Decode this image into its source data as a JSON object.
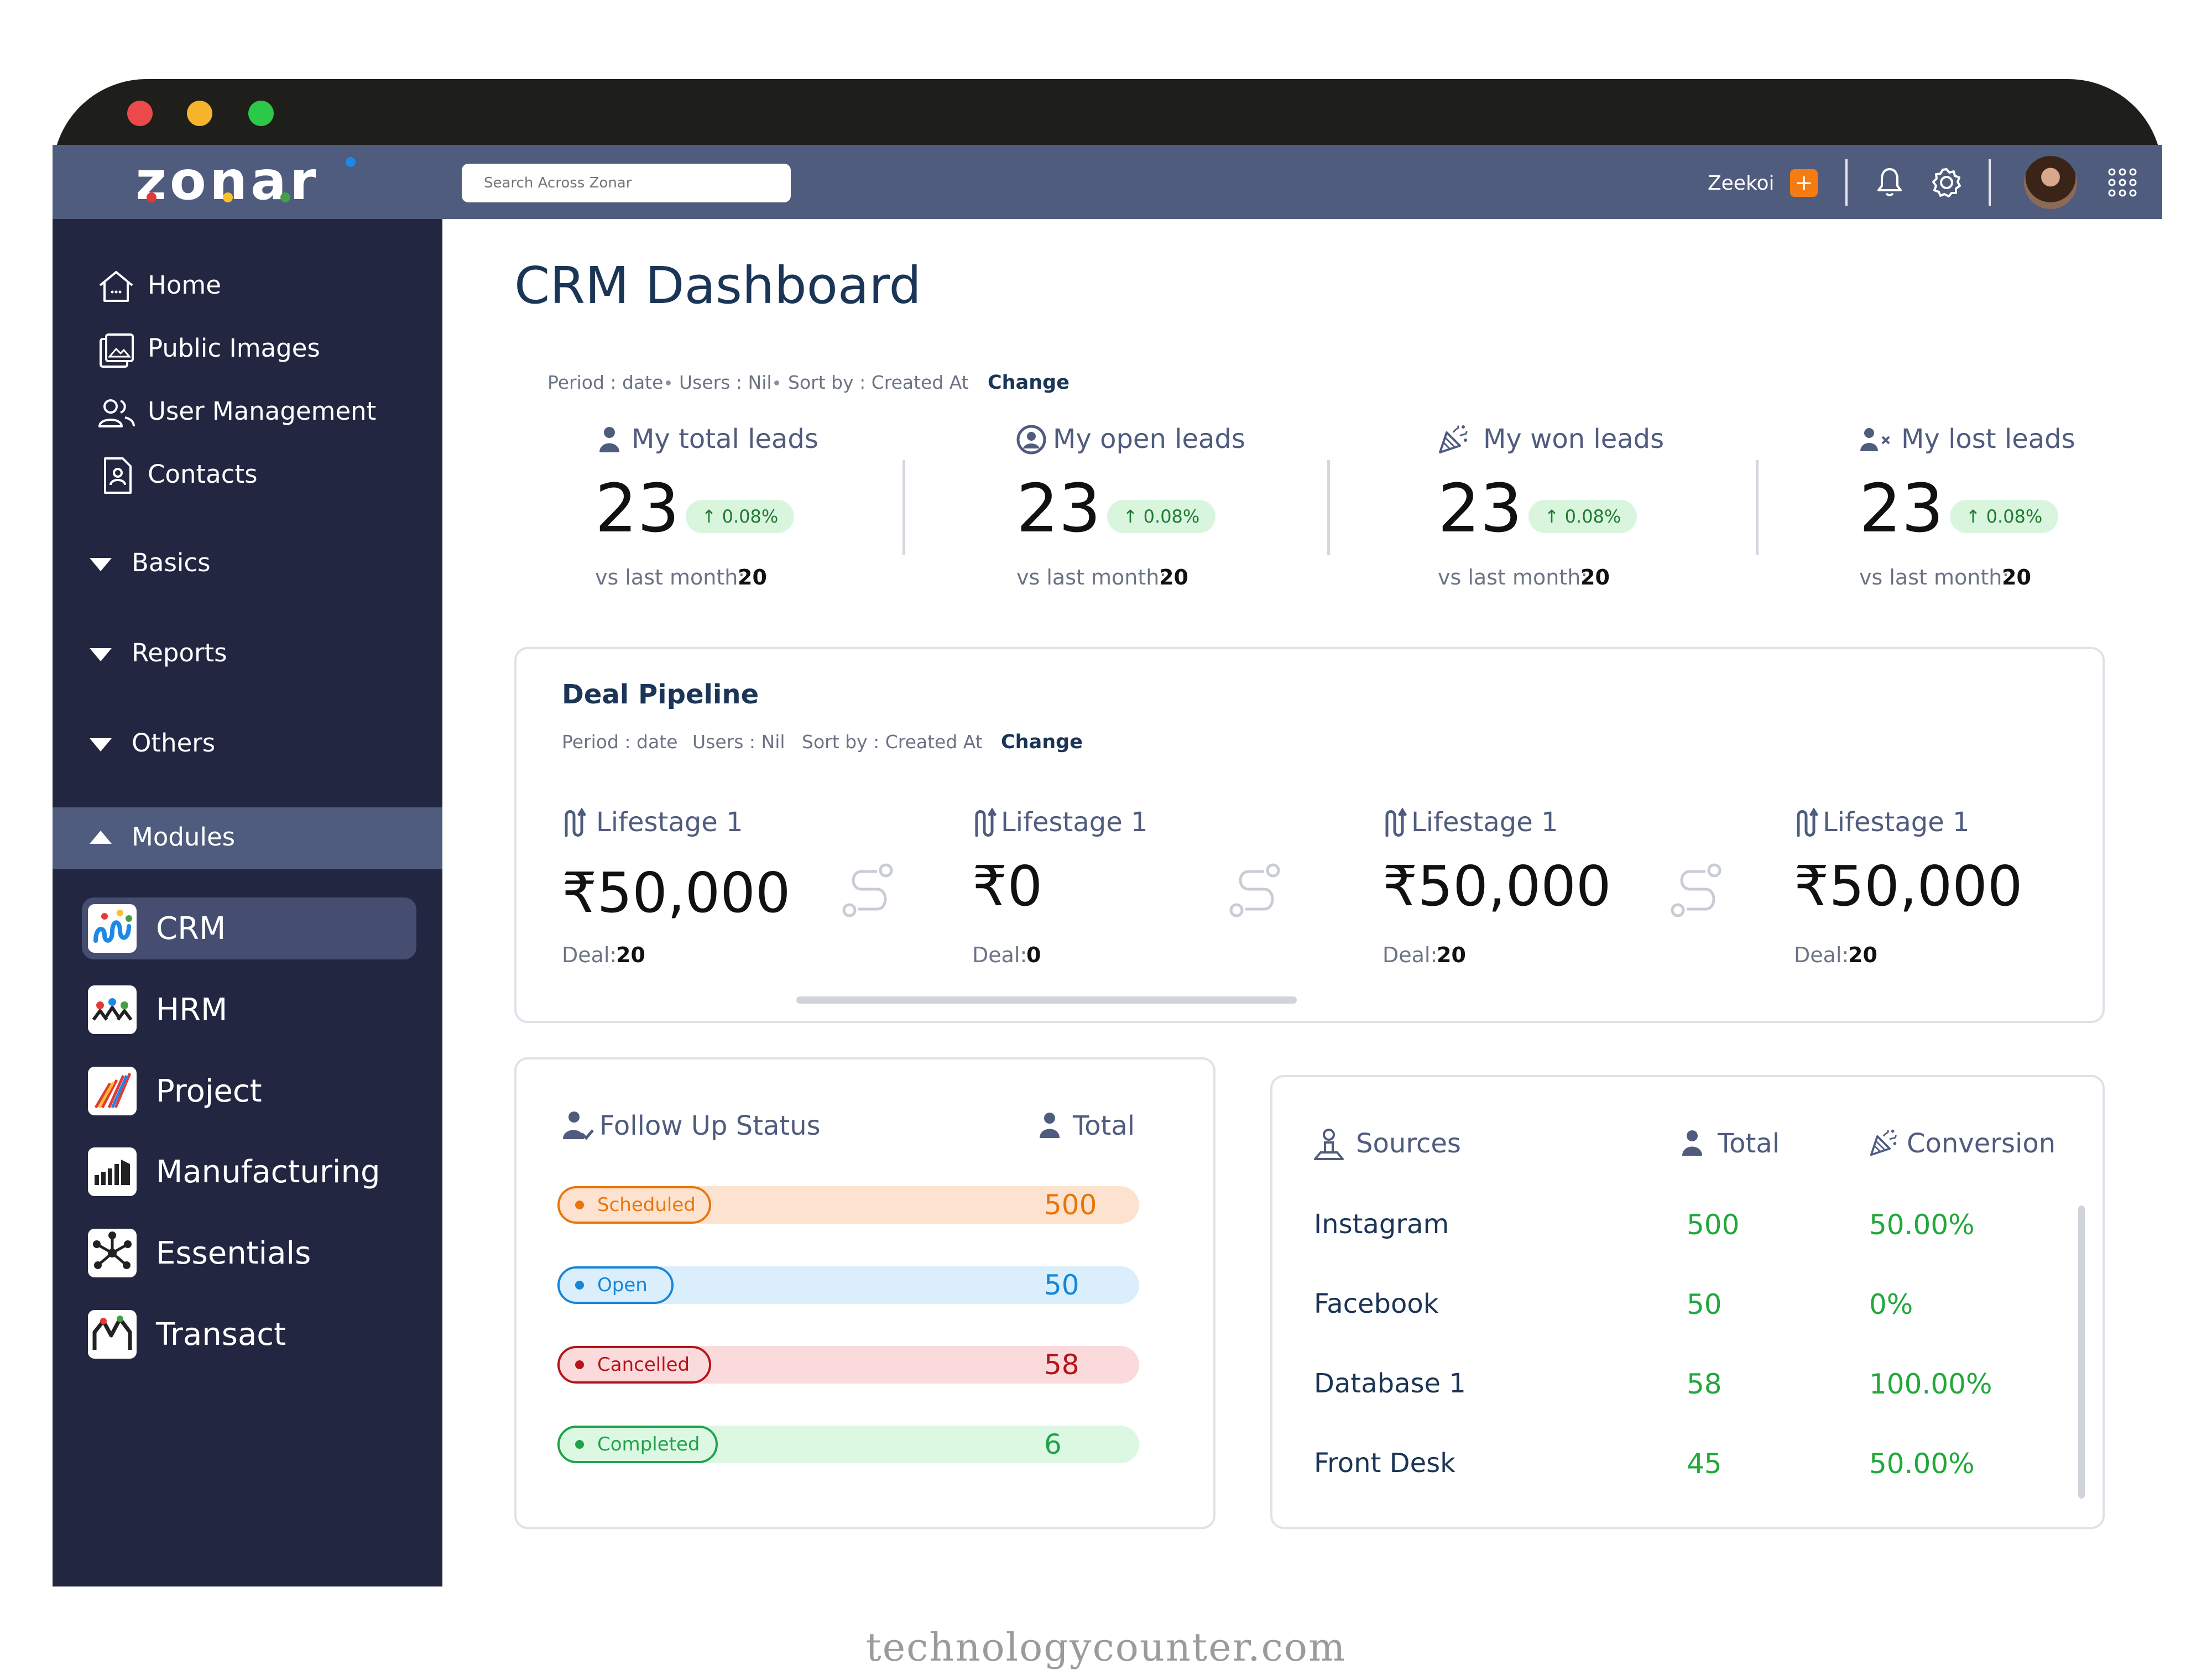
{
  "app": {
    "logo_text": "zonar",
    "search_placeholder": "Search Across Zonar",
    "company": "Zeekoi",
    "plus_label": "+"
  },
  "sidebar": {
    "nav": [
      {
        "label": "Home",
        "icon": "home-icon"
      },
      {
        "label": "Public Images",
        "icon": "image-icon"
      },
      {
        "label": "User Management",
        "icon": "users-icon"
      },
      {
        "label": "Contacts",
        "icon": "contact-icon"
      }
    ],
    "groups": [
      {
        "label": "Basics",
        "state": "collapsed"
      },
      {
        "label": "Reports",
        "state": "collapsed"
      },
      {
        "label": "Others",
        "state": "collapsed"
      },
      {
        "label": "Modules",
        "state": "expanded"
      }
    ],
    "modules": [
      {
        "label": "CRM",
        "active": true
      },
      {
        "label": "HRM"
      },
      {
        "label": "Project"
      },
      {
        "label": "Manufacturing"
      },
      {
        "label": "Essentials"
      },
      {
        "label": "Transact"
      }
    ]
  },
  "page": {
    "title": "CRM Dashboard",
    "filter": {
      "period": "Period : date",
      "users": "Users : Nil",
      "sort": "Sort by : Created At",
      "change": "Change"
    },
    "kpis": [
      {
        "label": "My total leads",
        "value": "23",
        "delta": "0.08%",
        "vs_label": "vs last month:",
        "vs_value": "20",
        "icon": "user-icon"
      },
      {
        "label": "My open leads",
        "value": "23",
        "delta": "0.08%",
        "vs_label": "vs last month:",
        "vs_value": "20",
        "icon": "user-circle-icon"
      },
      {
        "label": "My won leads",
        "value": "23",
        "delta": "0.08%",
        "vs_label": "vs last month:",
        "vs_value": "20",
        "icon": "party-popper-icon"
      },
      {
        "label": "My lost leads",
        "value": "23",
        "delta": "0.08%",
        "vs_label": "vs last month:",
        "vs_value": "20",
        "icon": "user-x-icon"
      }
    ]
  },
  "pipeline": {
    "title": "Deal Pipeline",
    "filter": {
      "period": "Period : date",
      "users": "Users : Nil",
      "sort": "Sort by : Created At",
      "change": "Change"
    },
    "stages": [
      {
        "label": "Lifestage 1",
        "amount": "₹50,000",
        "deal_label": "Deal:",
        "deal_value": "20"
      },
      {
        "label": "Lifestage 1",
        "amount": "₹0",
        "deal_label": "Deal:",
        "deal_value": "0"
      },
      {
        "label": "Lifestage 1",
        "amount": "₹50,000",
        "deal_label": "Deal:",
        "deal_value": "20"
      },
      {
        "label": "Lifestage 1",
        "amount": "₹50,000",
        "deal_label": "Deal:",
        "deal_value": "20"
      }
    ]
  },
  "followup": {
    "title": "Follow Up Status",
    "total_header": "Total",
    "rows": [
      {
        "status": "Scheduled",
        "total": "500",
        "color": "#e8760a",
        "bg": "#fde3cf"
      },
      {
        "status": "Open",
        "total": "50",
        "color": "#1686d8",
        "bg": "#dbeefb"
      },
      {
        "status": "Cancelled",
        "total": "58",
        "color": "#b3151b",
        "bg": "#fbdadb"
      },
      {
        "status": "Completed",
        "total": "6",
        "color": "#20a24a",
        "bg": "#dcf8e3"
      }
    ]
  },
  "sources": {
    "title": "Sources",
    "total_header": "Total",
    "conversion_header": "Conversion",
    "rows": [
      {
        "name": "Instagram",
        "total": "500",
        "conversion": "50.00%"
      },
      {
        "name": "Facebook",
        "total": "50",
        "conversion": "0%"
      },
      {
        "name": "Database 1",
        "total": "58",
        "conversion": "100.00%"
      },
      {
        "name": "Front Desk",
        "total": "45",
        "conversion": "50.00%"
      }
    ]
  },
  "watermark": "technologycounter.com",
  "colors": {
    "sidebar": "#222641",
    "topbar": "#4f5c7e",
    "navy_text": "#1b3556",
    "positive_green": "#22a83b"
  }
}
